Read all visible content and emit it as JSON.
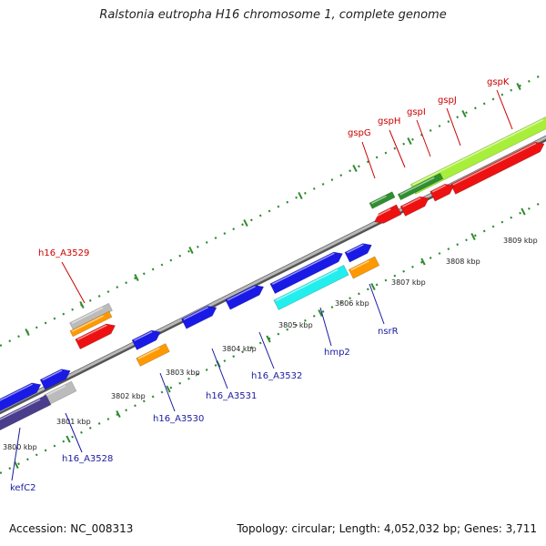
{
  "title": "Ralstonia eutropha H16 chromosome 1, complete genome",
  "footer": {
    "accession": "Accession: NC_008313",
    "summary": "Topology: circular; Length: 4,052,032 bp; Genes: 3,711"
  },
  "colors": {
    "backbone": "#909090",
    "tick": "#2e8b2e",
    "label_forward": "#cc0000",
    "label_reverse": "#1a1aa0",
    "red": "#ee1111",
    "blue": "#1a1ae6",
    "orange": "#ff9900",
    "gray": "#bbbbbb",
    "cyan": "#22eeee",
    "lightgreen": "#a8ef3c",
    "darkgreen": "#2f8f2f",
    "navy": "#4a3d8c"
  },
  "ruler": {
    "labels": [
      "3800 kbp",
      "3801 kbp",
      "3802 kbp",
      "3803 kbp",
      "3804 kbp",
      "3805 kbp",
      "3806 kbp",
      "3807 kbp",
      "3808 kbp",
      "3809 kbp"
    ]
  },
  "gene_labels": [
    {
      "text": "gspG",
      "strand": "forward"
    },
    {
      "text": "gspH",
      "strand": "forward"
    },
    {
      "text": "gspI",
      "strand": "forward"
    },
    {
      "text": "gspJ",
      "strand": "forward"
    },
    {
      "text": "gspK",
      "strand": "forward"
    },
    {
      "text": "h16_A3529",
      "strand": "forward"
    },
    {
      "text": "kefC2",
      "strand": "reverse"
    },
    {
      "text": "h16_A3528",
      "strand": "reverse"
    },
    {
      "text": "h16_A3530",
      "strand": "reverse"
    },
    {
      "text": "h16_A3531",
      "strand": "reverse"
    },
    {
      "text": "h16_A3532",
      "strand": "reverse"
    },
    {
      "text": "hmp2",
      "strand": "reverse"
    },
    {
      "text": "nsrR",
      "strand": "reverse"
    }
  ]
}
